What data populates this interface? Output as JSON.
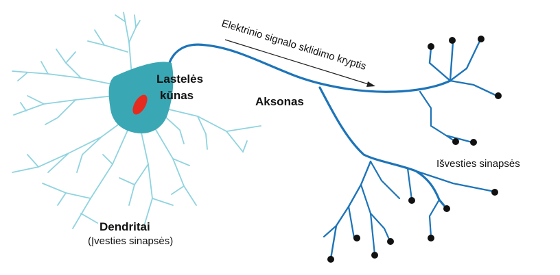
{
  "labels": {
    "cell_body_line1": "Lastelės",
    "cell_body_line2": "kūnas",
    "axon": "Aksonas",
    "signal_direction": "Elektrinio signalo sklidimo kryptis",
    "dendrites": "Dendritai",
    "input_synapses": "(Įvesties sinapsės)",
    "output_synapses": "Išvesties sinapsės"
  },
  "colors": {
    "dendrite": "#8fd3df",
    "cell_body": "#3aa7b4",
    "nucleus": "#e52a1f",
    "axon": "#1d74b8",
    "terminal": "#111111",
    "text": "#111111"
  }
}
